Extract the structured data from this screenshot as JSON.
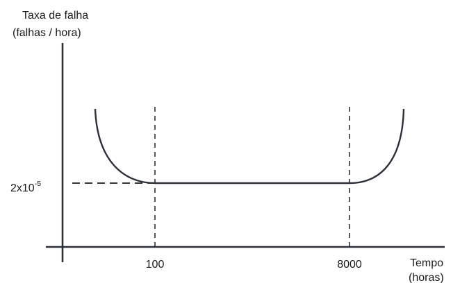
{
  "chart_data": {
    "type": "line",
    "title": "",
    "ylabel_lines": [
      "Taxa de falha",
      "(falhas / hora)"
    ],
    "xlabel_lines": [
      "Tempo",
      "(horas)"
    ],
    "x_tick_labels": [
      "100",
      "8000"
    ],
    "y_tick_label": {
      "base": "2x10",
      "exponent": "-5"
    },
    "grid": false,
    "legend": "none",
    "series": [
      {
        "shape": "bathtub curve",
        "points": [
          {
            "phase": "early failures (decreasing rate)",
            "from": "start",
            "to": "100"
          },
          {
            "phase": "constant rate",
            "value": "2x10^-5",
            "from": "100",
            "to": "8000"
          },
          {
            "phase": "wear-out (increasing rate)",
            "from": "8000",
            "to": "end"
          }
        ]
      }
    ],
    "colors": {
      "line": "#2b2f3a",
      "text": "#1a1a1a"
    }
  }
}
